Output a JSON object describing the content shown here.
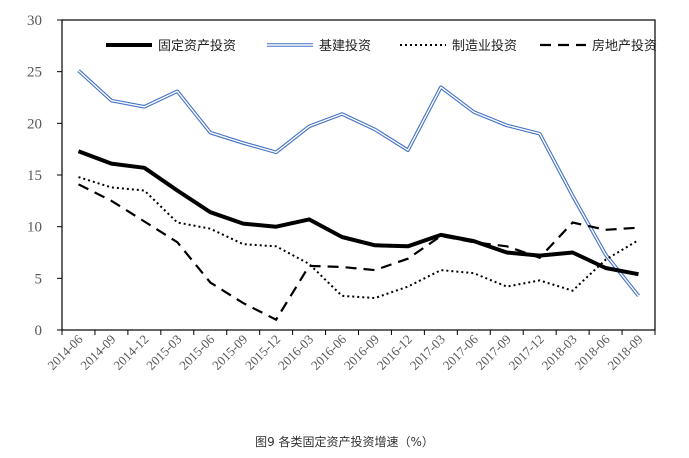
{
  "caption": "图9 各类固定资产投资增速（%）",
  "chart_data": {
    "type": "line",
    "title": "",
    "xlabel": "",
    "ylabel": "",
    "ylim": [
      0,
      30
    ],
    "yticks": [
      0,
      5,
      10,
      15,
      20,
      25,
      30
    ],
    "grid": false,
    "legend_position": "top",
    "categories": [
      "2014-06",
      "2014-09",
      "2014-12",
      "2015-03",
      "2015-06",
      "2015-09",
      "2015-12",
      "2016-03",
      "2016-06",
      "2016-09",
      "2016-12",
      "2017-03",
      "2017-06",
      "2017-09",
      "2017-12",
      "2018-03",
      "2018-06",
      "2018-09"
    ],
    "series": [
      {
        "name": "固定资产投资",
        "style": "thick-solid",
        "color": "#000000",
        "values": [
          17.3,
          16.1,
          15.7,
          13.5,
          11.4,
          10.3,
          10.0,
          10.7,
          9.0,
          8.2,
          8.1,
          9.2,
          8.6,
          7.5,
          7.2,
          7.5,
          6.0,
          5.4
        ]
      },
      {
        "name": "基建投资",
        "style": "double-blue",
        "color": "#4472C4",
        "values": [
          25.1,
          22.2,
          21.6,
          23.1,
          19.1,
          18.1,
          17.2,
          19.7,
          20.9,
          19.4,
          17.4,
          23.5,
          21.1,
          19.8,
          19.0,
          13.0,
          7.3,
          3.3
        ]
      },
      {
        "name": "制造业投资",
        "style": "dotted",
        "color": "#000000",
        "values": [
          14.8,
          13.8,
          13.5,
          10.4,
          9.8,
          8.3,
          8.1,
          6.4,
          3.3,
          3.1,
          4.2,
          5.8,
          5.5,
          4.2,
          4.8,
          3.8,
          6.8,
          8.7
        ]
      },
      {
        "name": "房地产投资",
        "style": "dashed",
        "color": "#000000",
        "values": [
          14.1,
          12.5,
          10.5,
          8.5,
          4.6,
          2.6,
          1.0,
          6.2,
          6.1,
          5.8,
          6.9,
          9.1,
          8.5,
          8.1,
          7.0,
          10.4,
          9.7,
          9.9
        ]
      }
    ]
  }
}
